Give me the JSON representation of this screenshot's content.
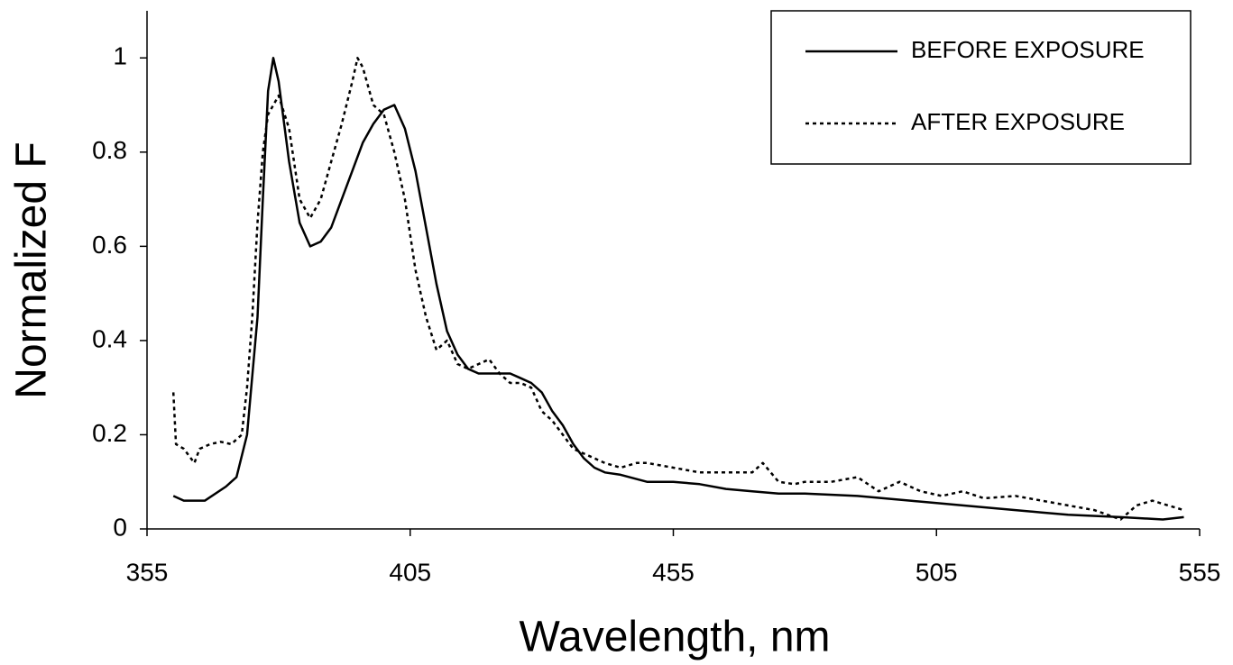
{
  "chart_data": {
    "type": "line",
    "x_label": "Wavelength, nm",
    "y_label": "Normalized F",
    "xlim": [
      355,
      555
    ],
    "xticks": [
      355,
      405,
      455,
      505,
      555
    ],
    "ylim": [
      0,
      1.1
    ],
    "yticks": [
      0,
      0.2,
      0.4,
      0.6,
      0.8,
      1
    ],
    "legend": "upper-right",
    "series": [
      {
        "name": "BEFORE EXPOSURE",
        "color": "#000000",
        "dash": "solid",
        "x": [
          360,
          362,
          366,
          370,
          372,
          374,
          376,
          377,
          378,
          379,
          380,
          382,
          384,
          386,
          388,
          390,
          392,
          394,
          396,
          398,
          400,
          402,
          404,
          406,
          408,
          410,
          412,
          414,
          416,
          418,
          420,
          424,
          426,
          428,
          430,
          432,
          434,
          436,
          438,
          440,
          442,
          445,
          450,
          455,
          460,
          465,
          470,
          475,
          480,
          490,
          500,
          505,
          510,
          515,
          520,
          525,
          530,
          540,
          548,
          552
        ],
        "values": [
          0.07,
          0.06,
          0.06,
          0.09,
          0.11,
          0.2,
          0.45,
          0.7,
          0.93,
          1.0,
          0.95,
          0.78,
          0.65,
          0.6,
          0.61,
          0.64,
          0.7,
          0.76,
          0.82,
          0.86,
          0.89,
          0.9,
          0.85,
          0.76,
          0.64,
          0.52,
          0.42,
          0.37,
          0.34,
          0.33,
          0.33,
          0.33,
          0.32,
          0.31,
          0.29,
          0.25,
          0.22,
          0.18,
          0.15,
          0.13,
          0.12,
          0.115,
          0.1,
          0.1,
          0.095,
          0.085,
          0.08,
          0.075,
          0.075,
          0.07,
          0.06,
          0.055,
          0.05,
          0.045,
          0.04,
          0.035,
          0.03,
          0.025,
          0.02,
          0.025
        ]
      },
      {
        "name": "AFTER EXPOSURE",
        "color": "#000000",
        "dash": "dotted",
        "x": [
          360,
          360.5,
          362,
          364,
          365,
          367,
          369,
          371,
          373,
          374,
          375,
          376,
          377,
          378,
          380,
          382,
          384,
          386,
          388,
          390,
          392,
          394,
          395,
          396,
          398,
          400,
          402,
          404,
          406,
          408,
          410,
          412,
          414,
          416,
          418,
          420,
          422,
          424,
          426,
          428,
          430,
          432,
          434,
          436,
          438,
          440,
          442,
          445,
          448,
          450,
          455,
          460,
          465,
          470,
          472,
          475,
          478,
          480,
          485,
          490,
          494,
          498,
          502,
          506,
          510,
          514,
          520,
          525,
          530,
          535,
          540,
          543,
          546,
          549,
          552
        ],
        "values": [
          0.29,
          0.18,
          0.17,
          0.14,
          0.17,
          0.18,
          0.185,
          0.18,
          0.2,
          0.3,
          0.45,
          0.65,
          0.8,
          0.88,
          0.92,
          0.85,
          0.7,
          0.66,
          0.7,
          0.78,
          0.86,
          0.95,
          1.0,
          0.98,
          0.9,
          0.88,
          0.8,
          0.7,
          0.55,
          0.45,
          0.38,
          0.4,
          0.35,
          0.34,
          0.35,
          0.36,
          0.33,
          0.31,
          0.31,
          0.3,
          0.25,
          0.23,
          0.2,
          0.17,
          0.16,
          0.15,
          0.14,
          0.13,
          0.14,
          0.14,
          0.13,
          0.12,
          0.12,
          0.12,
          0.14,
          0.1,
          0.095,
          0.1,
          0.1,
          0.11,
          0.08,
          0.1,
          0.08,
          0.07,
          0.08,
          0.065,
          0.07,
          0.06,
          0.05,
          0.04,
          0.02,
          0.05,
          0.06,
          0.05,
          0.04
        ]
      }
    ]
  }
}
